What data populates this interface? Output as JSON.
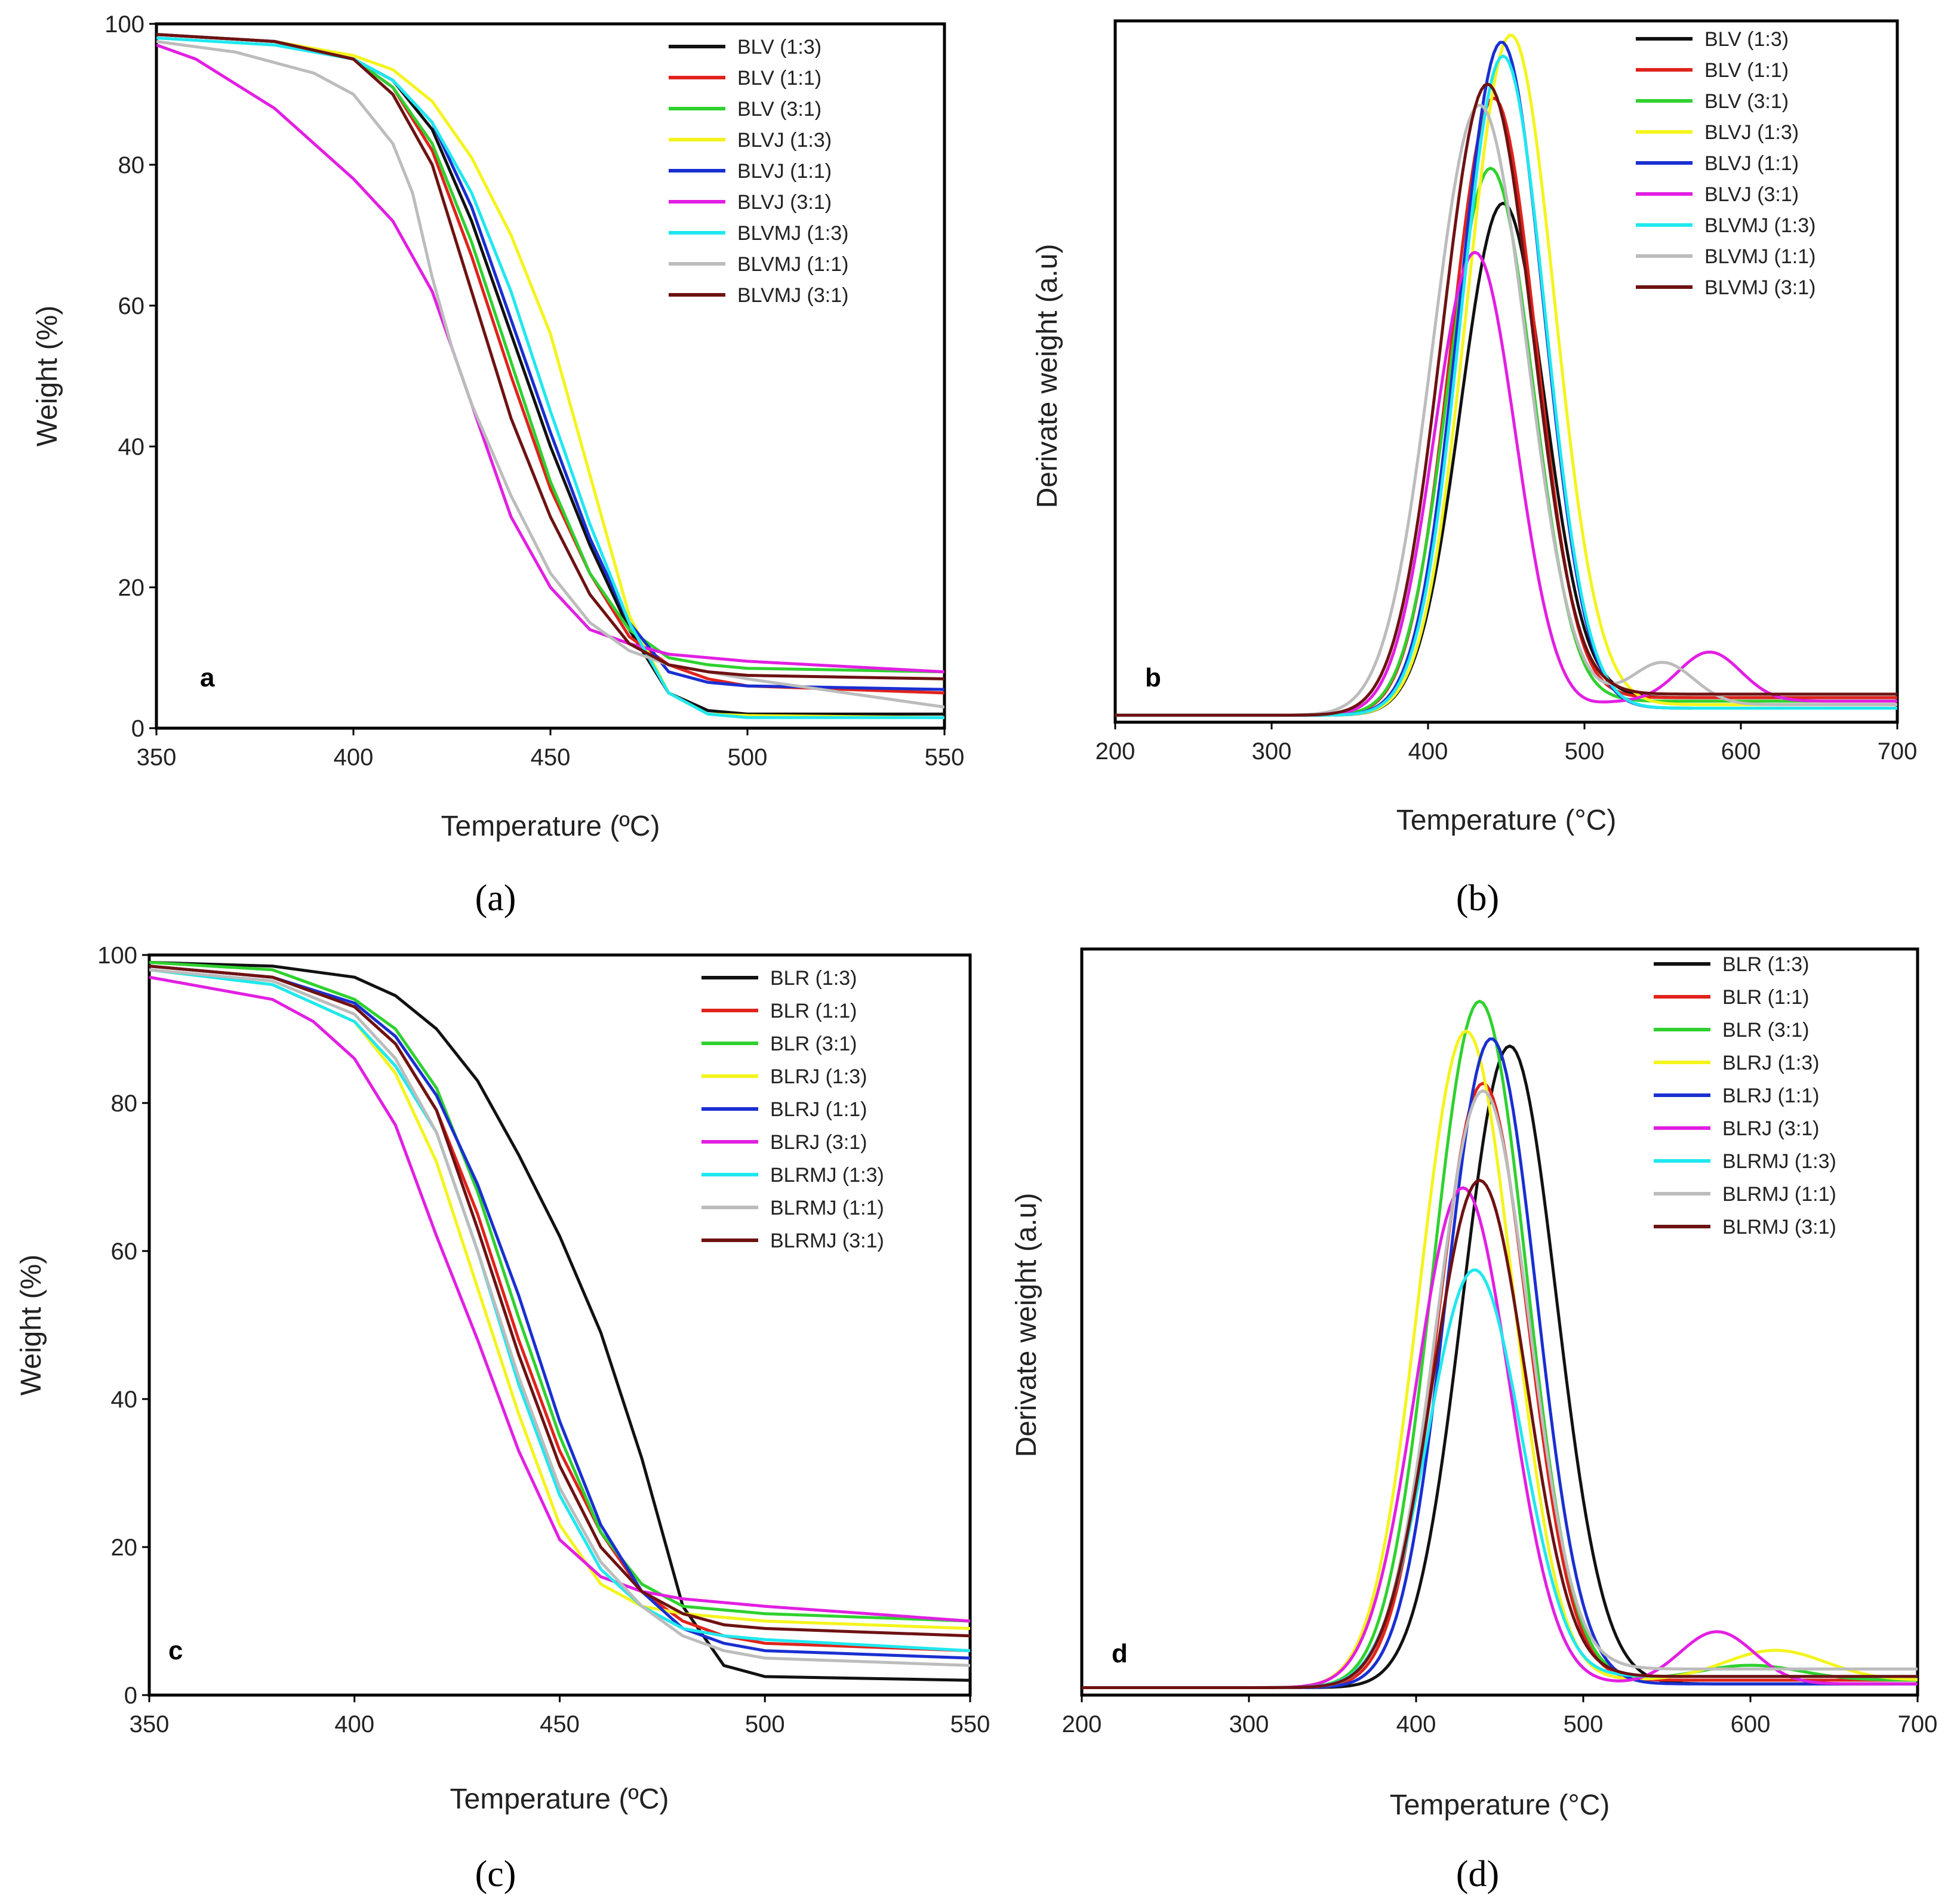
{
  "colors": {
    "black": "#111111",
    "red": "#e0231c",
    "green": "#2fd12f",
    "yellow": "#f4f41c",
    "blue": "#1a2fd1",
    "magenta": "#e21fe2",
    "cyan": "#1fe8ef",
    "gray": "#bcbcbc",
    "brown": "#6e1212"
  },
  "chart_data": [
    {
      "panel": "a",
      "caption": "(a)",
      "type": "line",
      "xlabel": "Temperature (ºC)",
      "ylabel": "Weight (%)",
      "xlim": [
        350,
        550
      ],
      "ylim": [
        0,
        100
      ],
      "xticks": [
        "350",
        "400",
        "450",
        "500",
        "550"
      ],
      "yticks": [
        "0",
        "20",
        "40",
        "60",
        "80",
        "100"
      ],
      "legend_position": "top-right",
      "series": [
        {
          "name": "BLV (1:3)",
          "color": "black",
          "x": [
            350,
            380,
            400,
            410,
            420,
            430,
            440,
            450,
            460,
            470,
            480,
            490,
            500,
            550
          ],
          "y": [
            98.5,
            97.5,
            95,
            92,
            85,
            72,
            56,
            40,
            26,
            14,
            5,
            2.5,
            2,
            2
          ]
        },
        {
          "name": "BLV (1:1)",
          "color": "red",
          "x": [
            350,
            380,
            400,
            410,
            420,
            430,
            440,
            450,
            460,
            470,
            480,
            490,
            500,
            550
          ],
          "y": [
            98.5,
            97.5,
            95,
            91,
            82,
            67,
            50,
            34,
            22,
            13,
            9,
            7,
            6,
            5
          ]
        },
        {
          "name": "BLV (3:1)",
          "color": "green",
          "x": [
            350,
            380,
            400,
            410,
            420,
            430,
            440,
            450,
            460,
            470,
            480,
            490,
            500,
            550
          ],
          "y": [
            98.5,
            97.5,
            95,
            91,
            83,
            69,
            52,
            35,
            22,
            14,
            10,
            9,
            8.5,
            8
          ]
        },
        {
          "name": "BLVJ (1:3)",
          "color": "yellow",
          "x": [
            350,
            380,
            400,
            410,
            420,
            430,
            440,
            450,
            460,
            470,
            480,
            490,
            500,
            550
          ],
          "y": [
            98.5,
            97.5,
            95.5,
            93.5,
            89,
            81,
            70,
            56,
            36,
            16,
            5,
            2,
            1.8,
            1.5
          ]
        },
        {
          "name": "BLVJ (1:1)",
          "color": "blue",
          "x": [
            350,
            380,
            400,
            410,
            420,
            430,
            440,
            450,
            460,
            470,
            480,
            490,
            500,
            550
          ],
          "y": [
            98.5,
            97.5,
            95,
            92,
            86,
            74,
            58,
            42,
            27,
            15,
            8,
            6.5,
            6,
            5.5
          ]
        },
        {
          "name": "BLVJ (3:1)",
          "color": "magenta",
          "x": [
            350,
            360,
            380,
            390,
            400,
            410,
            420,
            430,
            440,
            450,
            460,
            470,
            480,
            500,
            550
          ],
          "y": [
            97,
            95,
            88,
            83,
            78,
            72,
            62,
            46,
            30,
            20,
            14,
            12,
            10.5,
            9.5,
            8
          ]
        },
        {
          "name": "BLVMJ (1:3)",
          "color": "cyan",
          "x": [
            350,
            380,
            400,
            410,
            420,
            430,
            440,
            450,
            460,
            470,
            480,
            490,
            500,
            550
          ],
          "y": [
            98,
            97,
            95,
            92,
            86,
            76,
            62,
            45,
            29,
            15,
            5,
            2,
            1.5,
            1.5
          ]
        },
        {
          "name": "BLVMJ (1:1)",
          "color": "gray",
          "x": [
            350,
            370,
            390,
            400,
            410,
            415,
            420,
            425,
            430,
            440,
            450,
            460,
            470,
            480,
            500,
            550
          ],
          "y": [
            97.5,
            96,
            93,
            90,
            83,
            76,
            64,
            54,
            46,
            33,
            22,
            15,
            11,
            9,
            7,
            3
          ]
        },
        {
          "name": "BLVMJ (3:1)",
          "color": "brown",
          "x": [
            350,
            380,
            400,
            410,
            420,
            430,
            440,
            450,
            460,
            470,
            480,
            490,
            500,
            550
          ],
          "y": [
            98.5,
            97.5,
            95,
            90,
            80,
            62,
            44,
            30,
            19,
            12,
            9,
            8,
            7.5,
            7
          ]
        }
      ]
    },
    {
      "panel": "b",
      "caption": "(b)",
      "type": "line",
      "xlabel": "Temperature (°C)",
      "ylabel": "Derivate weight (a.u)",
      "xlim": [
        200,
        700
      ],
      "ylim": [
        0,
        100
      ],
      "xticks": [
        "200",
        "300",
        "400",
        "500",
        "600",
        "700"
      ],
      "yticks": [],
      "legend_position": "top-right",
      "series": [
        {
          "name": "BLV (1:3)",
          "color": "black",
          "peak": 448,
          "height": 73,
          "width": 27,
          "tail": 2.5,
          "hump": null
        },
        {
          "name": "BLV (1:1)",
          "color": "red",
          "peak": 442,
          "height": 88,
          "width": 27,
          "tail": 2.5,
          "hump": null
        },
        {
          "name": "BLV (3:1)",
          "color": "green",
          "peak": 440,
          "height": 78,
          "width": 27,
          "tail": 2,
          "hump": null
        },
        {
          "name": "BLVJ (1:3)",
          "color": "yellow",
          "peak": 453,
          "height": 97,
          "width": 28,
          "tail": 1.5,
          "hump": null
        },
        {
          "name": "BLVJ (1:1)",
          "color": "blue",
          "peak": 447,
          "height": 96,
          "width": 27,
          "tail": 1,
          "hump": null
        },
        {
          "name": "BLVJ (3:1)",
          "color": "magenta",
          "peak": 430,
          "height": 66,
          "width": 26,
          "tail": 2,
          "hump": [
            580,
            7,
            20
          ]
        },
        {
          "name": "BLVMJ (1:3)",
          "color": "cyan",
          "peak": 448,
          "height": 94,
          "width": 27,
          "tail": 1,
          "hump": null
        },
        {
          "name": "BLVMJ (1:1)",
          "color": "gray",
          "peak": 433,
          "height": 87,
          "width": 30,
          "tail": 1.5,
          "hump": [
            550,
            6,
            20
          ]
        },
        {
          "name": "BLVMJ (3:1)",
          "color": "brown",
          "peak": 438,
          "height": 90,
          "width": 29,
          "tail": 3,
          "hump": null
        }
      ]
    },
    {
      "panel": "c",
      "caption": "(c)",
      "type": "line",
      "xlabel": "Temperature (ºC)",
      "ylabel": "Weight (%)",
      "xlim": [
        350,
        550
      ],
      "ylim": [
        0,
        100
      ],
      "xticks": [
        "350",
        "400",
        "450",
        "500",
        "550"
      ],
      "yticks": [
        "0",
        "20",
        "40",
        "60",
        "80",
        "100"
      ],
      "legend_position": "top-right",
      "series": [
        {
          "name": "BLR (1:3)",
          "color": "black",
          "x": [
            350,
            380,
            400,
            410,
            420,
            430,
            440,
            450,
            460,
            470,
            480,
            490,
            500,
            550
          ],
          "y": [
            99,
            98.5,
            97,
            94.5,
            90,
            83,
            73,
            62,
            49,
            32,
            12,
            4,
            2.5,
            2
          ]
        },
        {
          "name": "BLR (1:1)",
          "color": "red",
          "x": [
            350,
            380,
            400,
            410,
            420,
            430,
            440,
            450,
            460,
            470,
            480,
            490,
            500,
            550
          ],
          "y": [
            98.5,
            97,
            93,
            88,
            79,
            65,
            48,
            33,
            22,
            14,
            10,
            8,
            7,
            6
          ]
        },
        {
          "name": "BLR (3:1)",
          "color": "green",
          "x": [
            350,
            380,
            400,
            410,
            420,
            430,
            440,
            450,
            460,
            470,
            480,
            490,
            500,
            550
          ],
          "y": [
            99,
            98,
            94,
            90,
            82,
            68,
            51,
            35,
            22,
            15,
            12,
            11.5,
            11,
            10
          ]
        },
        {
          "name": "BLRJ (1:3)",
          "color": "yellow",
          "x": [
            350,
            380,
            400,
            410,
            420,
            430,
            440,
            450,
            460,
            470,
            480,
            490,
            500,
            550
          ],
          "y": [
            98,
            96,
            91,
            84,
            72,
            55,
            38,
            23,
            15,
            12,
            11,
            10.5,
            10,
            9
          ]
        },
        {
          "name": "BLRJ (1:1)",
          "color": "blue",
          "x": [
            350,
            380,
            400,
            410,
            420,
            430,
            440,
            450,
            460,
            470,
            480,
            490,
            500,
            550
          ],
          "y": [
            98.5,
            97,
            93.5,
            89,
            81,
            69,
            54,
            37,
            23,
            14,
            9,
            7,
            6,
            5
          ]
        },
        {
          "name": "BLRJ (3:1)",
          "color": "magenta",
          "x": [
            350,
            380,
            390,
            400,
            410,
            420,
            430,
            440,
            450,
            460,
            470,
            480,
            500,
            550
          ],
          "y": [
            97,
            94,
            91,
            86,
            77,
            62,
            48,
            33,
            21,
            16,
            14,
            13,
            12,
            10
          ]
        },
        {
          "name": "BLRMJ (1:3)",
          "color": "cyan",
          "x": [
            350,
            380,
            400,
            410,
            420,
            430,
            440,
            450,
            460,
            470,
            480,
            490,
            500,
            550
          ],
          "y": [
            98,
            96,
            91,
            85,
            76,
            60,
            42,
            27,
            17,
            12,
            9,
            8,
            7.5,
            6
          ]
        },
        {
          "name": "BLRMJ (1:1)",
          "color": "gray",
          "x": [
            350,
            380,
            400,
            410,
            420,
            430,
            440,
            450,
            460,
            470,
            480,
            490,
            500,
            550
          ],
          "y": [
            98,
            96.5,
            92,
            86,
            76,
            60,
            43,
            28,
            18,
            12,
            8,
            6,
            5,
            4
          ]
        },
        {
          "name": "BLRMJ (3:1)",
          "color": "brown",
          "x": [
            350,
            380,
            400,
            410,
            420,
            430,
            440,
            450,
            460,
            470,
            480,
            490,
            500,
            550
          ],
          "y": [
            98.5,
            97,
            93,
            88,
            79,
            63,
            46,
            31,
            20,
            14,
            11,
            9.5,
            9,
            8
          ]
        }
      ]
    },
    {
      "panel": "d",
      "caption": "(d)",
      "type": "line",
      "xlabel": "Temperature (°C)",
      "ylabel": "Derivate weight (a.u)",
      "xlim": [
        200,
        700
      ],
      "ylim": [
        0,
        100
      ],
      "xticks": [
        "200",
        "300",
        "400",
        "500",
        "600",
        "700"
      ],
      "yticks": [],
      "legend_position": "top-right",
      "series": [
        {
          "name": "BLR (1:3)",
          "color": "black",
          "peak": 456,
          "height": 86,
          "width": 28,
          "tail": 0.5,
          "hump": null
        },
        {
          "name": "BLR (1:1)",
          "color": "red",
          "peak": 440,
          "height": 81,
          "width": 27,
          "tail": 1,
          "hump": null
        },
        {
          "name": "BLR (3:1)",
          "color": "green",
          "peak": 438,
          "height": 92,
          "width": 28,
          "tail": 1,
          "hump": [
            600,
            2,
            30
          ]
        },
        {
          "name": "BLRJ (1:3)",
          "color": "yellow",
          "peak": 430,
          "height": 88,
          "width": 28,
          "tail": 1,
          "hump": [
            615,
            4,
            30
          ]
        },
        {
          "name": "BLRJ (1:1)",
          "color": "blue",
          "peak": 445,
          "height": 87,
          "width": 27,
          "tail": 0.5,
          "hump": null
        },
        {
          "name": "BLRJ (3:1)",
          "color": "magenta",
          "peak": 428,
          "height": 67,
          "width": 28,
          "tail": 0.5,
          "hump": [
            580,
            7,
            22
          ]
        },
        {
          "name": "BLRMJ (1:3)",
          "color": "cyan",
          "peak": 435,
          "height": 56,
          "width": 28,
          "tail": 1.5,
          "hump": null
        },
        {
          "name": "BLRMJ (1:1)",
          "color": "gray",
          "peak": 440,
          "height": 80,
          "width": 28,
          "tail": 2.5,
          "hump": null
        },
        {
          "name": "BLRMJ (3:1)",
          "color": "brown",
          "peak": 438,
          "height": 68,
          "width": 28,
          "tail": 1.5,
          "hump": null
        }
      ]
    }
  ]
}
